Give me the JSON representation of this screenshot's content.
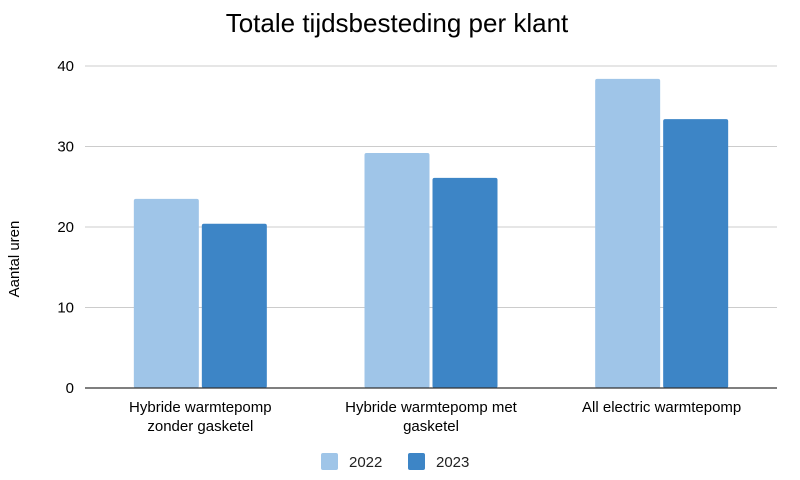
{
  "chart_data": {
    "type": "bar",
    "title": "Totale tijdsbesteding per klant",
    "xlabel": "",
    "ylabel": "Aantal uren",
    "categories": [
      [
        "Hybride warmtepomp",
        "zonder gasketel"
      ],
      [
        "Hybride warmtepomp met",
        "gasketel"
      ],
      [
        "All electric warmtepomp"
      ]
    ],
    "series": [
      {
        "name": "2022",
        "color": "#9fc5e8",
        "values": [
          23.5,
          29.2,
          38.4
        ]
      },
      {
        "name": "2023",
        "color": "#3d85c6",
        "values": [
          20.4,
          26.1,
          33.4
        ]
      }
    ],
    "ylim": [
      0,
      40
    ],
    "yticks": [
      0,
      10,
      20,
      30,
      40
    ],
    "grid": true,
    "legend": "bottom"
  }
}
